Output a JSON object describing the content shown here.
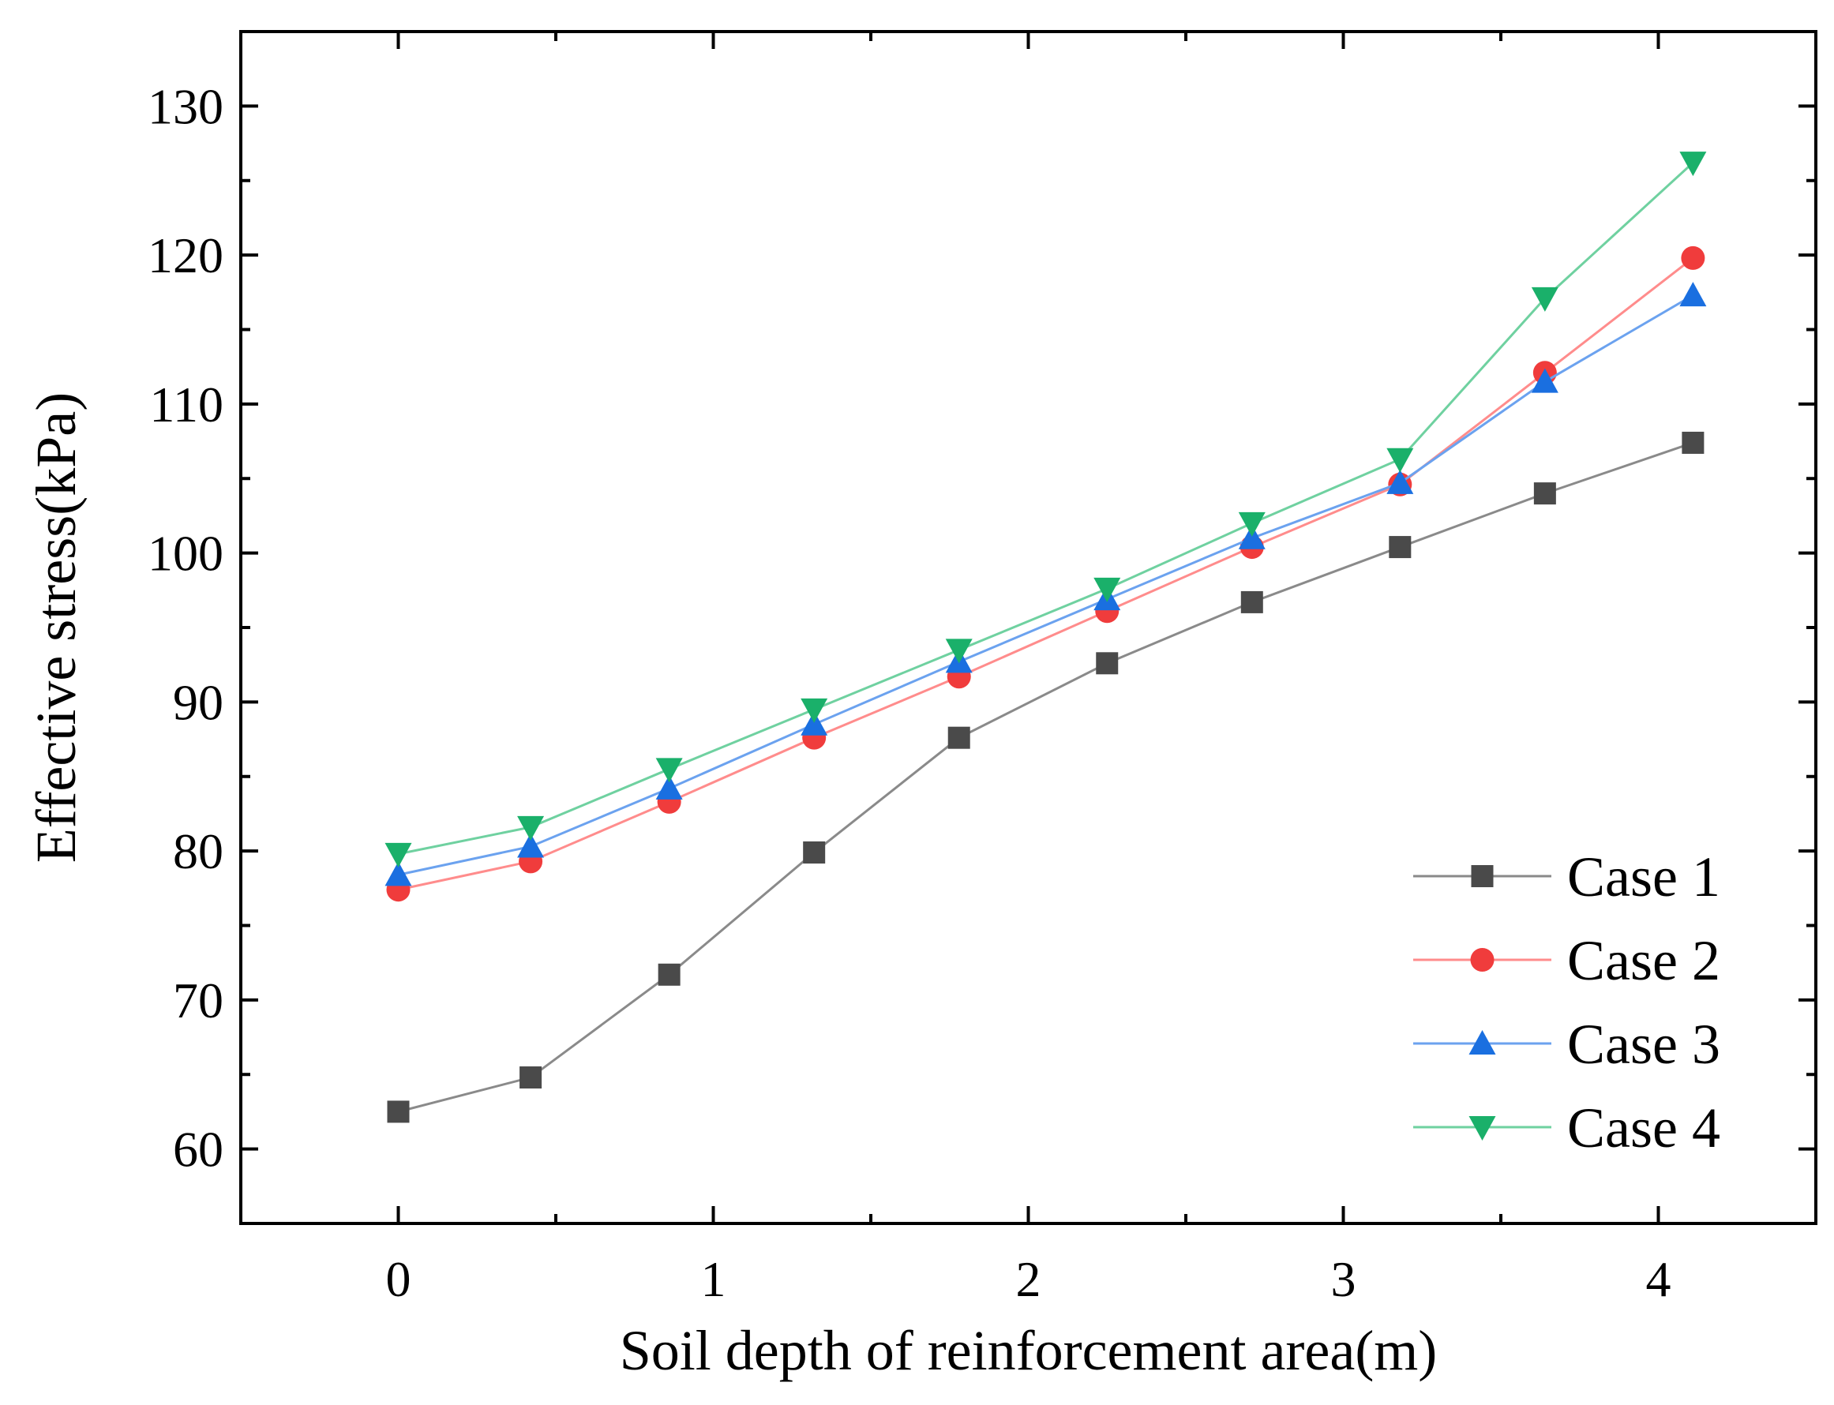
{
  "chart_data": {
    "type": "line",
    "title": "",
    "xlabel": "Soil depth of reinforcement area(m)",
    "ylabel": "Effective stress(kPa)",
    "xlim": [
      -0.5,
      4.5
    ],
    "ylim": [
      55,
      135
    ],
    "xticks": [
      0,
      1,
      2,
      3,
      4
    ],
    "xtick_labels": [
      "0",
      "1",
      "2",
      "3",
      "4"
    ],
    "yticks": [
      60,
      70,
      80,
      90,
      100,
      110,
      120,
      130
    ],
    "ytick_labels": [
      "60",
      "70",
      "80",
      "90",
      "100",
      "110",
      "120",
      "130"
    ],
    "grid": false,
    "legend_position": "bottom-right",
    "x": [
      0,
      0.42,
      0.86,
      1.32,
      1.78,
      2.25,
      2.71,
      3.18,
      3.64,
      4.11
    ],
    "series": [
      {
        "name": "Case 1",
        "marker": "square",
        "color": "#4a4a4a",
        "line_color": "#8a8a8a",
        "values": [
          62.5,
          64.8,
          71.7,
          79.9,
          87.6,
          92.6,
          96.7,
          100.4,
          104.0,
          107.4
        ]
      },
      {
        "name": "Case 2",
        "marker": "circle",
        "color": "#f03c3c",
        "line_color": "#ff8c8c",
        "values": [
          77.4,
          79.3,
          83.3,
          87.6,
          91.7,
          96.1,
          100.4,
          104.6,
          112.1,
          119.8
        ]
      },
      {
        "name": "Case 3",
        "marker": "triangle-up",
        "color": "#1a6fe0",
        "line_color": "#6ba2ef",
        "values": [
          78.4,
          80.3,
          84.2,
          88.5,
          92.7,
          96.9,
          101.0,
          104.7,
          111.5,
          117.3
        ]
      },
      {
        "name": "Case 4",
        "marker": "triangle-down",
        "color": "#1ab06a",
        "line_color": "#6fd1a0",
        "values": [
          79.8,
          81.6,
          85.5,
          89.5,
          93.5,
          97.6,
          102.0,
          106.3,
          117.1,
          126.2
        ]
      }
    ]
  }
}
